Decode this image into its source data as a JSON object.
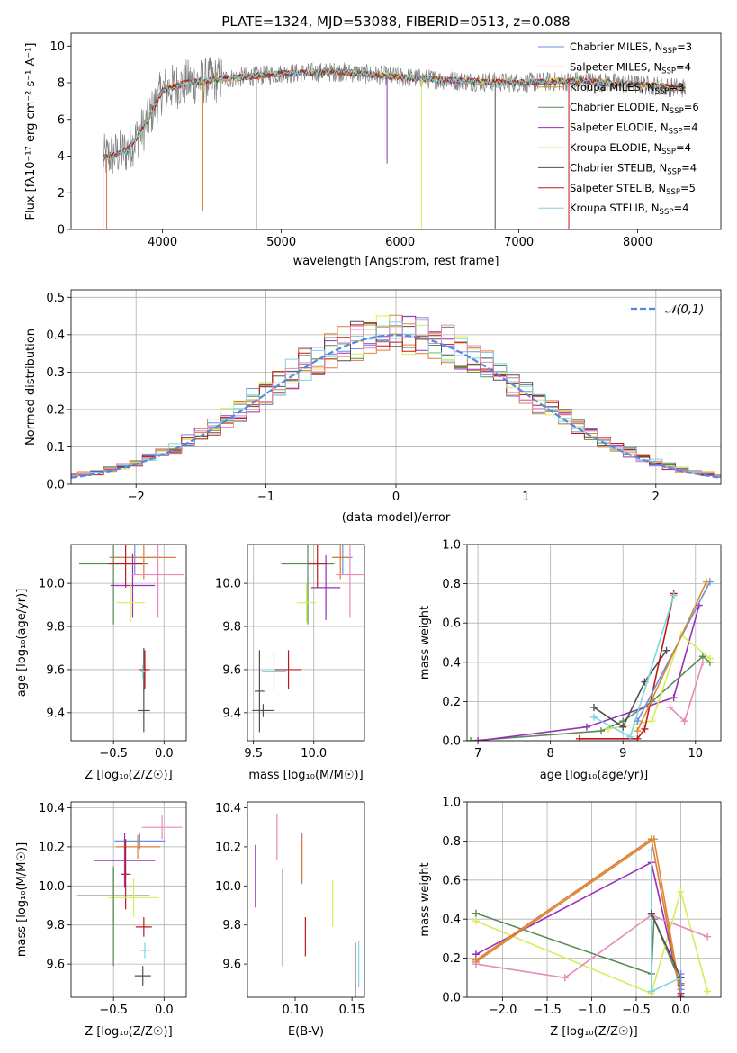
{
  "colors": {
    "Chabrier MILES": "#6f8fe0",
    "Salpeter MILES": "#e07a35",
    "Kroupa MILES": "#d9892f",
    "Chabrier ELODIE": "#5a8a5a",
    "Salpeter ELODIE": "#9a2fb8",
    "Kroupa ELODIE": "#d8ec5a",
    "Chabrier STELIB": "#505050",
    "Salpeter STELIB": "#c01818",
    "Kroupa STELIB": "#7ad7e0",
    "pink": "#e888bb",
    "gaussian": "#5588dd",
    "grid": "#b0b0b0"
  },
  "chart_data": [
    {
      "id": "spectrum",
      "type": "line",
      "title": "PLATE=1324, MJD=53088, FIBERID=0513, z=0.088",
      "xlabel": "wavelength [Angstrom, rest frame]",
      "ylabel": "Flux [f_λ10^-17 erg cm^-2 s^-1 A^-1]",
      "xlim": [
        3230,
        8700
      ],
      "ylim": [
        0,
        10.7
      ],
      "xticks": [
        4000,
        5000,
        6000,
        7000,
        8000
      ],
      "yticks": [
        0,
        2,
        4,
        6,
        8,
        10
      ],
      "grid": false,
      "legend_position": "right",
      "legend": [
        {
          "label": "Chabrier MILES, N_SSP=3",
          "sub": "SSP",
          "pre": "Chabrier MILES, N",
          "post": "=3",
          "color": "#6f8fe0"
        },
        {
          "label": "Salpeter MILES, N_SSP=4",
          "sub": "SSP",
          "pre": "Salpeter MILES, N",
          "post": "=4",
          "color": "#e07a35"
        },
        {
          "label": "Kroupa MILES, N_SSP=3",
          "sub": "SSP",
          "pre": "Kroupa MILES, N",
          "post": "=3",
          "color": "#d9892f"
        },
        {
          "label": "Chabrier ELODIE, N_SSP=6",
          "sub": "SSP",
          "pre": "Chabrier ELODIE, N",
          "post": "=6",
          "color": "#5a8a5a"
        },
        {
          "label": "Salpeter ELODIE, N_SSP=4",
          "sub": "SSP",
          "pre": "Salpeter ELODIE, N",
          "post": "=4",
          "color": "#9a2fb8"
        },
        {
          "label": "Kroupa ELODIE, N_SSP=4",
          "sub": "SSP",
          "pre": "Kroupa ELODIE, N",
          "post": "=4",
          "color": "#d8ec5a"
        },
        {
          "label": "Chabrier STELIB, N_SSP=4",
          "sub": "SSP",
          "pre": "Chabrier STELIB, N",
          "post": "=4",
          "color": "#505050"
        },
        {
          "label": "Salpeter STELIB, N_SSP=5",
          "sub": "SSP",
          "pre": "Salpeter STELIB, N",
          "post": "=5",
          "color": "#c01818"
        },
        {
          "label": "Kroupa STELIB, N_SSP=4",
          "sub": "SSP",
          "pre": "Kroupa STELIB, N",
          "post": "=4",
          "color": "#7ad7e0"
        }
      ],
      "continuum": [
        [
          3500,
          3.9
        ],
        [
          3700,
          4.3
        ],
        [
          3850,
          5.6
        ],
        [
          4000,
          7.6
        ],
        [
          4200,
          8.0
        ],
        [
          4500,
          8.2
        ],
        [
          5000,
          8.5
        ],
        [
          5500,
          8.6
        ],
        [
          6000,
          8.3
        ],
        [
          6500,
          8.1
        ],
        [
          7000,
          8.0
        ],
        [
          7500,
          8.1
        ],
        [
          8000,
          7.9
        ],
        [
          8400,
          7.7
        ]
      ],
      "dips": [
        [
          3500,
          0
        ],
        [
          3530,
          0
        ],
        [
          4340,
          1
        ],
        [
          4790,
          0
        ],
        [
          5890,
          3.6
        ],
        [
          6180,
          0
        ],
        [
          6800,
          0
        ],
        [
          7420,
          0
        ]
      ]
    },
    {
      "id": "residuals",
      "type": "histogram",
      "xlabel": "(data-model)/error",
      "ylabel": "Normed distribution",
      "xlim": [
        -2.5,
        2.5
      ],
      "ylim": [
        0,
        0.52
      ],
      "xticks": [
        -2,
        -1,
        0,
        1,
        2
      ],
      "yticks": [
        0.0,
        0.1,
        0.2,
        0.3,
        0.4,
        0.5
      ],
      "bin_width": 0.1,
      "grid": true,
      "legend_position": "top-right",
      "legend": [
        {
          "label": "𝒩(0,1)",
          "color": "#5588dd",
          "dashed": true
        }
      ],
      "series_colors": [
        "#6f8fe0",
        "#e07a35",
        "#d9892f",
        "#5a8a5a",
        "#9a2fb8",
        "#d8ec5a",
        "#505050",
        "#c01818",
        "#7ad7e0",
        "#e888bb"
      ]
    },
    {
      "id": "age_vs_Z",
      "type": "scatter",
      "xlabel": "Z [log10(Z/Z☉)]",
      "ylabel": "age  [log10(age/yr)]",
      "xlim": [
        -0.92,
        0.22
      ],
      "ylim": [
        9.27,
        10.18
      ],
      "xticks": [
        -0.5,
        0.0
      ],
      "yticks": [
        9.4,
        9.6,
        9.8,
        10.0
      ],
      "grid": true,
      "points": [
        {
          "x": -0.5,
          "y": 10.09,
          "xerr": 0.34,
          "yerr": 0.28,
          "color": "#5a8a5a"
        },
        {
          "x": -0.29,
          "y": 10.12,
          "xerr": 0.25,
          "yerr": 0.08,
          "color": "#6f8fe0"
        },
        {
          "x": -0.2,
          "y": 10.12,
          "xerr": 0.32,
          "yerr": 0.1,
          "color": "#e07a35"
        },
        {
          "x": -0.38,
          "y": 10.09,
          "xerr": 0.17,
          "yerr": 0.11,
          "color": "#c01818"
        },
        {
          "x": -0.31,
          "y": 9.99,
          "xerr": 0.22,
          "yerr": 0.15,
          "color": "#9a2fb8"
        },
        {
          "x": -0.06,
          "y": 10.04,
          "xerr": 0.26,
          "yerr": 0.2,
          "color": "#e888bb"
        },
        {
          "x": -0.33,
          "y": 9.91,
          "xerr": 0.14,
          "yerr": 0.09,
          "color": "#d8ec5a"
        },
        {
          "x": -0.2,
          "y": 9.6,
          "xerr": 0.03,
          "yerr": 0.1,
          "color": "#505050"
        },
        {
          "x": -0.19,
          "y": 9.6,
          "xerr": 0.05,
          "yerr": 0.09,
          "color": "#c01818"
        },
        {
          "x": -0.21,
          "y": 9.59,
          "xerr": 0.02,
          "yerr": 0.03,
          "color": "#7ad7e0"
        },
        {
          "x": -0.2,
          "y": 9.41,
          "xerr": 0.06,
          "yerr": 0.1,
          "color": "#505050"
        }
      ]
    },
    {
      "id": "age_vs_mass",
      "type": "scatter",
      "xlabel": "mass [log10(M/M☉)]",
      "ylabel": "",
      "xlim": [
        9.45,
        10.42
      ],
      "ylim": [
        9.27,
        10.18
      ],
      "xticks": [
        9.5,
        10.0
      ],
      "yticks": [
        9.4,
        9.6,
        9.8,
        10.0
      ],
      "grid": true,
      "points": [
        {
          "x": 9.95,
          "y": 10.09,
          "xerr": 0.22,
          "yerr": 0.28,
          "color": "#5a8a5a"
        },
        {
          "x": 10.24,
          "y": 10.12,
          "xerr": 0.08,
          "yerr": 0.08,
          "color": "#6f8fe0"
        },
        {
          "x": 10.22,
          "y": 10.12,
          "xerr": 0.07,
          "yerr": 0.1,
          "color": "#e07a35"
        },
        {
          "x": 10.03,
          "y": 10.09,
          "xerr": 0.08,
          "yerr": 0.11,
          "color": "#c01818"
        },
        {
          "x": 10.1,
          "y": 9.98,
          "xerr": 0.12,
          "yerr": 0.15,
          "color": "#9a2fb8"
        },
        {
          "x": 10.3,
          "y": 10.04,
          "xerr": 0.12,
          "yerr": 0.2,
          "color": "#e888bb"
        },
        {
          "x": 9.94,
          "y": 9.91,
          "xerr": 0.08,
          "yerr": 0.09,
          "color": "#d8ec5a"
        },
        {
          "x": 9.55,
          "y": 9.5,
          "xerr": 0.04,
          "yerr": 0.19,
          "color": "#505050"
        },
        {
          "x": 9.79,
          "y": 9.6,
          "xerr": 0.11,
          "yerr": 0.09,
          "color": "#c01818"
        },
        {
          "x": 9.67,
          "y": 9.59,
          "xerr": 0.1,
          "yerr": 0.09,
          "color": "#7ad7e0"
        },
        {
          "x": 9.58,
          "y": 9.41,
          "xerr": 0.09,
          "yerr": 0.03,
          "color": "#505050"
        }
      ]
    },
    {
      "id": "weight_vs_age",
      "type": "line",
      "xlabel": "age  [log10(age/yr)]",
      "ylabel": "mass weight",
      "xlim": [
        6.85,
        10.35
      ],
      "ylim": [
        0,
        1.0
      ],
      "xticks": [
        7,
        8,
        9,
        10
      ],
      "yticks": [
        0.0,
        0.2,
        0.4,
        0.6,
        0.8,
        1.0
      ],
      "grid": true,
      "series": [
        {
          "color": "#5a8a5a",
          "points": [
            [
              6.9,
              0.0
            ],
            [
              8.7,
              0.05
            ],
            [
              9.0,
              0.1
            ],
            [
              9.4,
              0.2
            ],
            [
              10.1,
              0.43
            ],
            [
              10.2,
              0.4
            ]
          ]
        },
        {
          "color": "#9a2fb8",
          "points": [
            [
              7.0,
              0.0
            ],
            [
              8.5,
              0.07
            ],
            [
              9.7,
              0.22
            ],
            [
              10.05,
              0.69
            ]
          ]
        },
        {
          "color": "#d8ec5a",
          "points": [
            [
              8.8,
              0.06
            ],
            [
              9.4,
              0.1
            ],
            [
              9.8,
              0.54
            ],
            [
              10.2,
              0.42
            ]
          ]
        },
        {
          "color": "#505050",
          "points": [
            [
              8.6,
              0.17
            ],
            [
              9.0,
              0.07
            ],
            [
              9.3,
              0.3
            ],
            [
              9.6,
              0.46
            ]
          ]
        },
        {
          "color": "#c01818",
          "points": [
            [
              8.4,
              0.01
            ],
            [
              9.2,
              0.01
            ],
            [
              9.3,
              0.06
            ],
            [
              9.7,
              0.75
            ]
          ]
        },
        {
          "color": "#7ad7e0",
          "points": [
            [
              8.6,
              0.12
            ],
            [
              9.1,
              0.02
            ],
            [
              9.7,
              0.74
            ]
          ]
        },
        {
          "color": "#6f8fe0",
          "points": [
            [
              9.2,
              0.1
            ],
            [
              10.2,
              0.81
            ]
          ]
        },
        {
          "color": "#d9892f",
          "points": [
            [
              9.2,
              0.05
            ],
            [
              10.15,
              0.81
            ]
          ]
        },
        {
          "color": "#e888bb",
          "points": [
            [
              9.65,
              0.17
            ],
            [
              9.85,
              0.1
            ],
            [
              10.1,
              0.4
            ]
          ]
        }
      ]
    },
    {
      "id": "mass_vs_Z",
      "type": "scatter",
      "xlabel": "Z [log10(Z/Z☉)]",
      "ylabel": "mass [log10(M/M☉)]",
      "xlim": [
        -0.92,
        0.22
      ],
      "ylim": [
        9.43,
        10.43
      ],
      "xticks": [
        -0.5,
        0.0
      ],
      "yticks": [
        9.6,
        9.8,
        10.0,
        10.2,
        10.4
      ],
      "grid": true,
      "points": [
        {
          "x": -0.02,
          "y": 10.3,
          "xerr": 0.2,
          "yerr": 0.06,
          "color": "#e888bb"
        },
        {
          "x": -0.24,
          "y": 10.23,
          "xerr": 0.25,
          "yerr": 0.04,
          "color": "#6f8fe0"
        },
        {
          "x": -0.26,
          "y": 10.2,
          "xerr": 0.22,
          "yerr": 0.06,
          "color": "#e07a35"
        },
        {
          "x": -0.39,
          "y": 10.13,
          "xerr": 0.3,
          "yerr": 0.14,
          "color": "#9a2fb8"
        },
        {
          "x": -0.38,
          "y": 10.06,
          "xerr": 0.05,
          "yerr": 0.18,
          "color": "#c01818"
        },
        {
          "x": -0.5,
          "y": 9.95,
          "xerr": 0.36,
          "yerr": 0.15,
          "color": "#5a8a5a"
        },
        {
          "x": -0.3,
          "y": 9.94,
          "xerr": 0.25,
          "yerr": 0.1,
          "color": "#d8ec5a"
        },
        {
          "x": -0.5,
          "y": 9.84,
          "xerr": 0.0,
          "yerr": 0.25,
          "color": "#5a8a5a"
        },
        {
          "x": -0.2,
          "y": 9.79,
          "xerr": 0.08,
          "yerr": 0.05,
          "color": "#c01818"
        },
        {
          "x": -0.19,
          "y": 9.67,
          "xerr": 0.05,
          "yerr": 0.04,
          "color": "#7ad7e0"
        },
        {
          "x": -0.21,
          "y": 9.54,
          "xerr": 0.08,
          "yerr": 0.05,
          "color": "#505050"
        }
      ]
    },
    {
      "id": "mass_vs_ebv",
      "type": "scatter",
      "xlabel": "E(B-V)",
      "ylabel": "",
      "xlim": [
        0.058,
        0.161
      ],
      "ylim": [
        9.43,
        10.43
      ],
      "xticks": [
        0.1,
        0.15
      ],
      "yticks": [
        9.6,
        9.8,
        10.0,
        10.2,
        10.4
      ],
      "grid": false,
      "points": [
        {
          "x": 0.084,
          "y": 10.25,
          "xerr": 0,
          "yerr": 0.12,
          "color": "#e888bb"
        },
        {
          "x": 0.106,
          "y": 10.14,
          "xerr": 0,
          "yerr": 0.13,
          "color": "#6f8fe0"
        },
        {
          "x": 0.106,
          "y": 10.14,
          "xerr": 0,
          "yerr": 0.12,
          "color": "#e07a35"
        },
        {
          "x": 0.065,
          "y": 10.05,
          "xerr": 0,
          "yerr": 0.16,
          "color": "#9a2fb8"
        },
        {
          "x": 0.089,
          "y": 9.84,
          "xerr": 0,
          "yerr": 0.25,
          "color": "#5a8a5a"
        },
        {
          "x": 0.133,
          "y": 9.91,
          "xerr": 0,
          "yerr": 0.12,
          "color": "#d8ec5a"
        },
        {
          "x": 0.109,
          "y": 9.74,
          "xerr": 0,
          "yerr": 0.1,
          "color": "#c01818"
        },
        {
          "x": 0.153,
          "y": 9.54,
          "xerr": 0,
          "yerr": 0.17,
          "color": "#505050"
        },
        {
          "x": 0.156,
          "y": 9.6,
          "xerr": 0,
          "yerr": 0.12,
          "color": "#7ad7e0"
        }
      ]
    },
    {
      "id": "weight_vs_Z",
      "type": "line",
      "xlabel": "Z [log10(Z/Z☉)]",
      "ylabel": "mass weight",
      "xlim": [
        -2.4,
        0.45
      ],
      "ylim": [
        0,
        1.0
      ],
      "xticks": [
        -2.0,
        -1.5,
        -1.0,
        -0.5,
        0.0
      ],
      "yticks": [
        0.0,
        0.2,
        0.4,
        0.6,
        0.8,
        1.0
      ],
      "grid": true,
      "series": [
        {
          "color": "#5a8a5a",
          "points": [
            [
              -2.3,
              0.43
            ],
            [
              -0.33,
              0.12
            ],
            [
              -0.3,
              0.4
            ],
            [
              0.0,
              0.07
            ]
          ]
        },
        {
          "color": "#d8ec5a",
          "points": [
            [
              -2.3,
              0.39
            ],
            [
              -0.33,
              0.02
            ],
            [
              0.0,
              0.54
            ],
            [
              0.3,
              0.03
            ]
          ]
        },
        {
          "color": "#9a2fb8",
          "points": [
            [
              -2.3,
              0.22
            ],
            [
              -0.33,
              0.69
            ],
            [
              0.0,
              0.02
            ]
          ]
        },
        {
          "color": "#e07a35",
          "points": [
            [
              -2.3,
              0.19
            ],
            [
              -0.33,
              0.81
            ],
            [
              0.0,
              0.0
            ]
          ]
        },
        {
          "color": "#d9892f",
          "points": [
            [
              -2.3,
              0.18
            ],
            [
              -0.3,
              0.81
            ],
            [
              0.0,
              0.01
            ]
          ]
        },
        {
          "color": "#e888bb",
          "points": [
            [
              -2.3,
              0.17
            ],
            [
              -1.3,
              0.1
            ],
            [
              -0.33,
              0.42
            ],
            [
              0.3,
              0.31
            ]
          ]
        },
        {
          "color": "#7ad7e0",
          "points": [
            [
              -0.33,
              0.75
            ],
            [
              -0.33,
              0.03
            ],
            [
              0.0,
              0.1
            ]
          ]
        },
        {
          "color": "#505050",
          "points": [
            [
              -0.33,
              0.43
            ],
            [
              0.0,
              0.1
            ]
          ]
        },
        {
          "color": "#c01818",
          "points": [
            [
              0.0,
              0.06
            ],
            [
              0.0,
              0.0
            ]
          ]
        },
        {
          "color": "#6f8fe0",
          "points": [
            [
              0.0,
              0.12
            ],
            [
              0.0,
              0.04
            ]
          ]
        }
      ]
    }
  ]
}
